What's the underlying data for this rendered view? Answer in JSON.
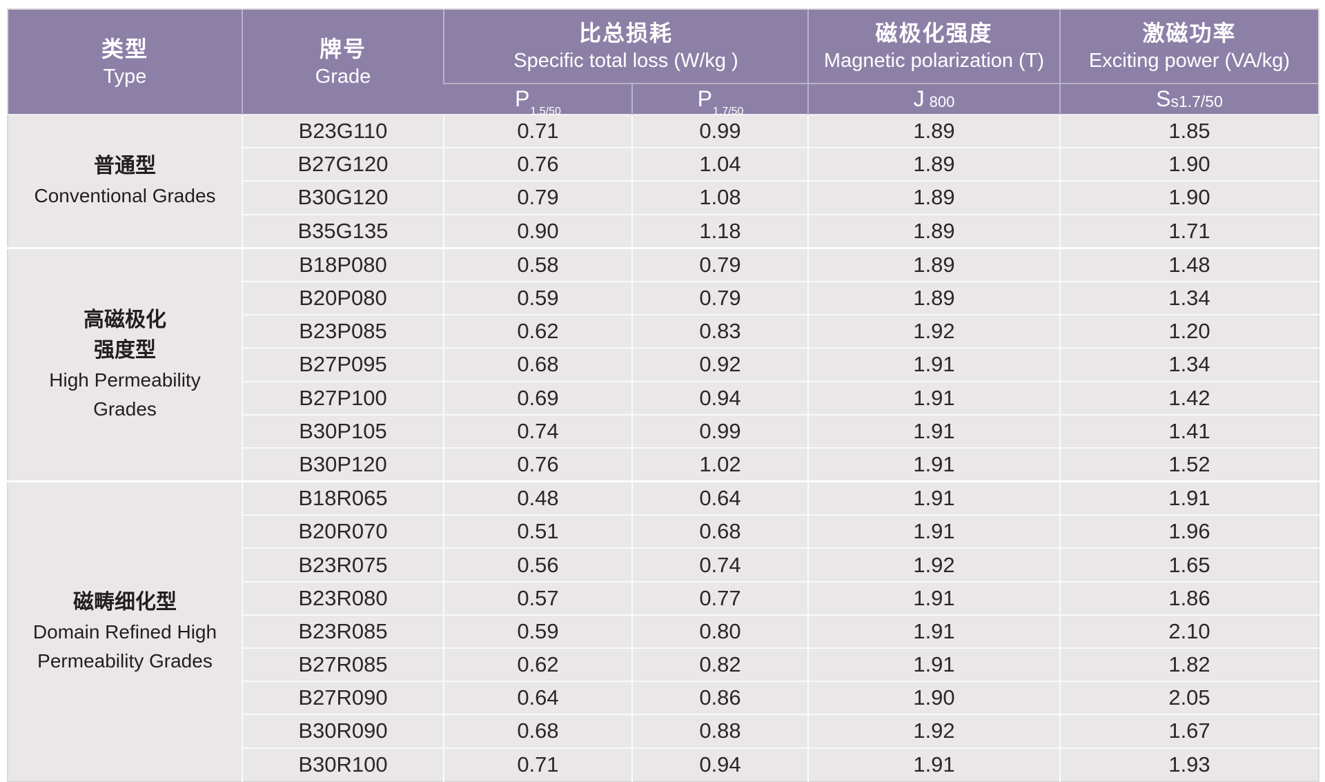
{
  "title": "Grain-oriented electrical steel grades specification table",
  "colors": {
    "header_purple": "#8c80a7",
    "cell_gray": "#e9e7e8",
    "text_dark": "#2b2728",
    "header_text": "#ffffff",
    "divider_white": "#fdfdfd"
  },
  "header": {
    "type": {
      "zh": "类型",
      "en": "Type"
    },
    "grade": {
      "zh": "牌号",
      "en": "Grade"
    },
    "loss": {
      "zh": "比总损耗",
      "en": "Specific total loss (W/kg )"
    },
    "polarization": {
      "zh": "磁极化强度",
      "en": "Magnetic polarization (T)"
    },
    "exciting": {
      "zh": "激磁功率",
      "en": "Exciting power (VA/kg)"
    },
    "sub": [
      {
        "main": "P",
        "sub": "1.5/50"
      },
      {
        "main": "P",
        "sub": "1.7/50"
      },
      {
        "main": "J",
        "sub": "800"
      },
      {
        "main": "S",
        "sub": "s1.7/50"
      }
    ]
  },
  "groups": [
    {
      "type_zh": "普通型",
      "type_en": "Conventional Grades",
      "rows": [
        {
          "grade": "B23G110",
          "p15": "0.71",
          "p17": "0.99",
          "j800": "1.89",
          "ss": "1.85"
        },
        {
          "grade": "B27G120",
          "p15": "0.76",
          "p17": "1.04",
          "j800": "1.89",
          "ss": "1.90"
        },
        {
          "grade": "B30G120",
          "p15": "0.79",
          "p17": "1.08",
          "j800": "1.89",
          "ss": "1.90"
        },
        {
          "grade": "B35G135",
          "p15": "0.90",
          "p17": "1.18",
          "j800": "1.89",
          "ss": "1.71"
        }
      ]
    },
    {
      "type_zh": "高磁极化\n强度型",
      "type_en": "High Permeability\nGrades",
      "rows": [
        {
          "grade": "B18P080",
          "p15": "0.58",
          "p17": "0.79",
          "j800": "1.89",
          "ss": "1.48"
        },
        {
          "grade": "B20P080",
          "p15": "0.59",
          "p17": "0.79",
          "j800": "1.89",
          "ss": "1.34"
        },
        {
          "grade": "B23P085",
          "p15": "0.62",
          "p17": "0.83",
          "j800": "1.92",
          "ss": "1.20"
        },
        {
          "grade": "B27P095",
          "p15": "0.68",
          "p17": "0.92",
          "j800": "1.91",
          "ss": "1.34"
        },
        {
          "grade": "B27P100",
          "p15": "0.69",
          "p17": "0.94",
          "j800": "1.91",
          "ss": "1.42"
        },
        {
          "grade": "B30P105",
          "p15": "0.74",
          "p17": "0.99",
          "j800": "1.91",
          "ss": "1.41"
        },
        {
          "grade": "B30P120",
          "p15": "0.76",
          "p17": "1.02",
          "j800": "1.91",
          "ss": "1.52"
        }
      ]
    },
    {
      "type_zh": "磁畴细化型",
      "type_en": "Domain Refined High\nPermeability Grades",
      "rows": [
        {
          "grade": "B18R065",
          "p15": "0.48",
          "p17": "0.64",
          "j800": "1.91",
          "ss": "1.91"
        },
        {
          "grade": "B20R070",
          "p15": "0.51",
          "p17": "0.68",
          "j800": "1.91",
          "ss": "1.96"
        },
        {
          "grade": "B23R075",
          "p15": "0.56",
          "p17": "0.74",
          "j800": "1.92",
          "ss": "1.65"
        },
        {
          "grade": "B23R080",
          "p15": "0.57",
          "p17": "0.77",
          "j800": "1.91",
          "ss": "1.86"
        },
        {
          "grade": "B23R085",
          "p15": "0.59",
          "p17": "0.80",
          "j800": "1.91",
          "ss": "2.10"
        },
        {
          "grade": "B27R085",
          "p15": "0.62",
          "p17": "0.82",
          "j800": "1.91",
          "ss": "1.82"
        },
        {
          "grade": "B27R090",
          "p15": "0.64",
          "p17": "0.86",
          "j800": "1.90",
          "ss": "2.05"
        },
        {
          "grade": "B30R090",
          "p15": "0.68",
          "p17": "0.88",
          "j800": "1.92",
          "ss": "1.67"
        },
        {
          "grade": "B30R100",
          "p15": "0.71",
          "p17": "0.94",
          "j800": "1.91",
          "ss": "1.93"
        }
      ]
    }
  ]
}
